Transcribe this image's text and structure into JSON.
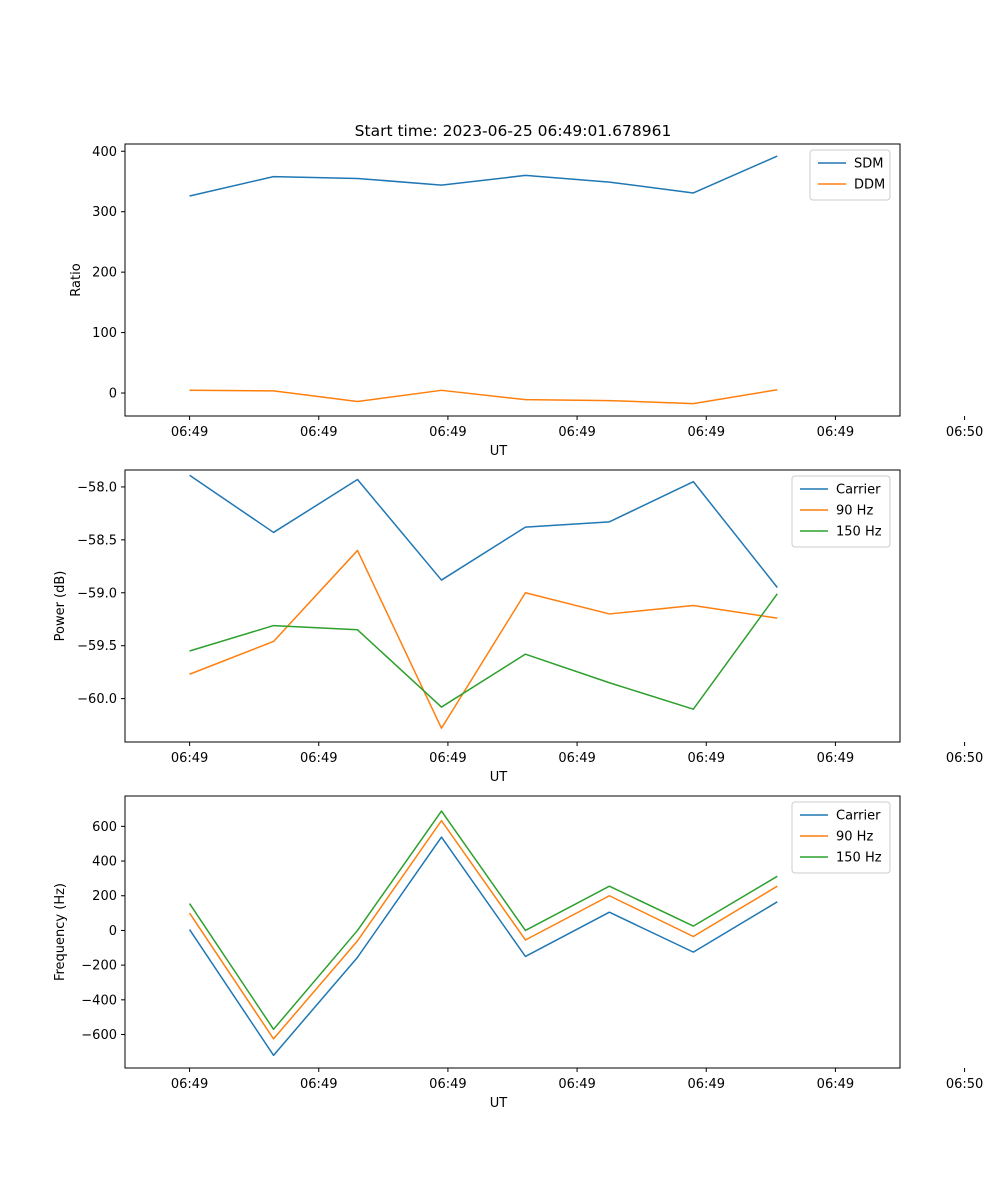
{
  "figure": {
    "title": "Start time: 2023-06-25 06:49:01.678961"
  },
  "chart_data": [
    {
      "type": "line",
      "title": "Start time: 2023-06-25 06:49:01.678961",
      "xlabel": "UT",
      "ylabel": "Ratio",
      "x_tick_labels": [
        "06:49",
        "06:49",
        "06:49",
        "06:49",
        "06:49",
        "06:49",
        "06:50"
      ],
      "xlim": [
        -0.5,
        5.5
      ],
      "x": [
        0,
        0.65,
        1.3,
        1.95,
        2.6,
        3.25,
        3.9,
        4.55
      ],
      "ylim": [
        -38,
        412
      ],
      "yticks": [
        0,
        100,
        200,
        300,
        400
      ],
      "legend_loc": "upper right",
      "grid": false,
      "series": [
        {
          "name": "SDM",
          "color": "#1f77b4",
          "values": [
            326,
            358,
            355,
            344,
            360,
            349,
            331,
            392
          ]
        },
        {
          "name": "DDM",
          "color": "#ff7f0e",
          "values": [
            4.5,
            3.5,
            -14,
            4.5,
            -11,
            -12.5,
            -17.5,
            5.5
          ]
        }
      ]
    },
    {
      "type": "line",
      "title": "",
      "xlabel": "UT",
      "ylabel": "Power (dB)",
      "x_tick_labels": [
        "06:49",
        "06:49",
        "06:49",
        "06:49",
        "06:49",
        "06:49",
        "06:50"
      ],
      "xlim": [
        -0.5,
        5.5
      ],
      "x": [
        0,
        0.65,
        1.3,
        1.95,
        2.6,
        3.25,
        3.9,
        4.55
      ],
      "ylim": [
        -60.41,
        -57.84
      ],
      "yticks": [
        -58.0,
        -58.5,
        -59.0,
        -59.5,
        -60.0
      ],
      "ytick_labels": [
        "−58.0",
        "−58.5",
        "−59.0",
        "−59.5",
        "−60.0"
      ],
      "legend_loc": "upper right",
      "grid": false,
      "series": [
        {
          "name": "Carrier",
          "color": "#1f77b4",
          "values": [
            -57.89,
            -58.43,
            -57.93,
            -58.88,
            -58.38,
            -58.33,
            -57.95,
            -58.95
          ]
        },
        {
          "name": "90 Hz",
          "color": "#ff7f0e",
          "values": [
            -59.77,
            -59.46,
            -58.6,
            -60.28,
            -59.0,
            -59.2,
            -59.12,
            -59.24
          ]
        },
        {
          "name": "150 Hz",
          "color": "#2ca02c",
          "values": [
            -59.55,
            -59.31,
            -59.35,
            -60.08,
            -59.58,
            -59.85,
            -60.1,
            -59.01
          ]
        }
      ]
    },
    {
      "type": "line",
      "title": "",
      "xlabel": "UT",
      "ylabel": "Frequency (Hz)",
      "x_tick_labels": [
        "06:49",
        "06:49",
        "06:49",
        "06:49",
        "06:49",
        "06:49",
        "06:50"
      ],
      "xlim": [
        -0.5,
        5.5
      ],
      "x": [
        0,
        0.65,
        1.3,
        1.95,
        2.6,
        3.25,
        3.9,
        4.55
      ],
      "ylim": [
        -793,
        775
      ],
      "yticks": [
        600,
        400,
        200,
        0,
        -200,
        -400,
        -600
      ],
      "ytick_labels": [
        "600",
        "400",
        "200",
        "0",
        "−200",
        "−400",
        "−600"
      ],
      "legend_loc": "upper right",
      "grid": false,
      "series": [
        {
          "name": "Carrier",
          "color": "#1f77b4",
          "values": [
            5,
            -720,
            -155,
            538,
            -150,
            105,
            -125,
            165
          ]
        },
        {
          "name": "90 Hz",
          "color": "#ff7f0e",
          "values": [
            100,
            -625,
            -60,
            633,
            -55,
            200,
            -35,
            255
          ]
        },
        {
          "name": "150 Hz",
          "color": "#2ca02c",
          "values": [
            155,
            -570,
            0,
            688,
            0,
            255,
            25,
            312
          ]
        }
      ]
    }
  ]
}
